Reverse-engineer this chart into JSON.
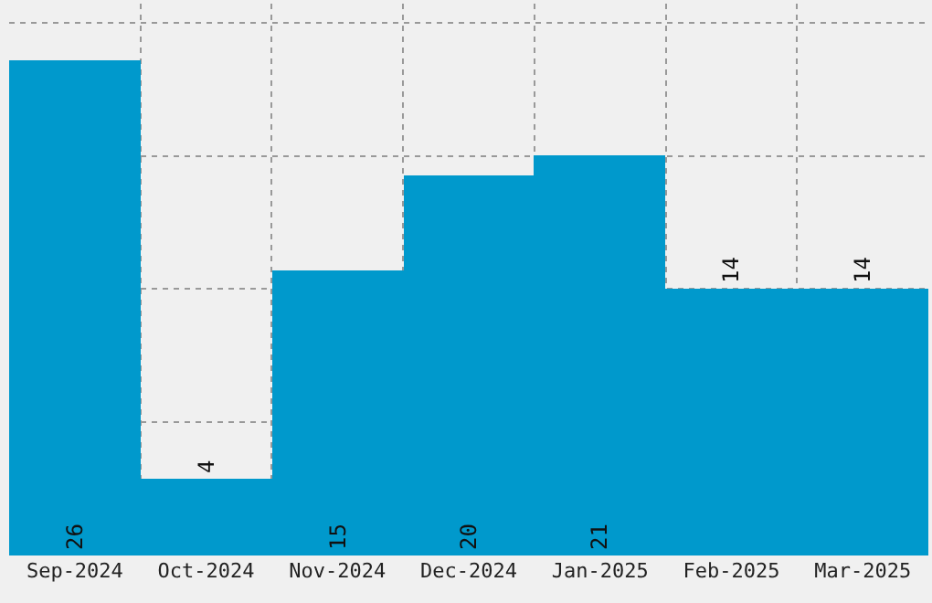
{
  "chart_data": {
    "type": "bar",
    "categories": [
      "Sep-2024",
      "Oct-2024",
      "Nov-2024",
      "Dec-2024",
      "Jan-2025",
      "Feb-2025",
      "Mar-2025"
    ],
    "values": [
      26,
      4,
      15,
      20,
      21,
      14,
      14
    ],
    "color": "#0099cc",
    "data_labels": true,
    "ylim": [
      0,
      29
    ],
    "yticks": [
      {
        "value": 7,
        "label": null
      },
      {
        "value": 14,
        "label": null
      },
      {
        "value": 21,
        "label": null
      },
      {
        "value": 28,
        "label": null
      }
    ],
    "tick_labels": "x",
    "grid": true
  }
}
